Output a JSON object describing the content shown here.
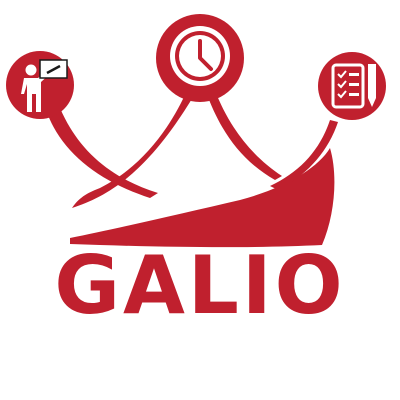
{
  "logo": {
    "wordmark": "GALIO",
    "brand_color": "#c0202e",
    "icons": [
      "teacher-presentation-icon",
      "clock-icon",
      "checklist-pencil-icon"
    ]
  }
}
